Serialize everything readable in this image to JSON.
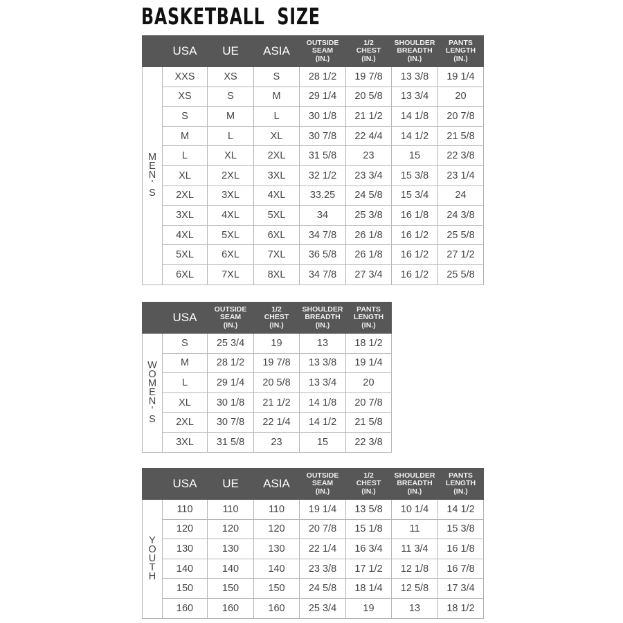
{
  "title": "BASKETBALL  SIZE",
  "tables": [
    {
      "id": "men",
      "side_label": "MEN'S",
      "headers": [
        {
          "label": "USA",
          "size": "big"
        },
        {
          "label": "UE",
          "size": "big"
        },
        {
          "label": "ASIA",
          "size": "big"
        },
        {
          "label": "OUTSIDE\nSEAM\n(IN.)",
          "size": "small"
        },
        {
          "label": "1/2\nCHEST\n(IN.)",
          "size": "small"
        },
        {
          "label": "SHOULDER\nBREADTH\n(IN.)",
          "size": "small"
        },
        {
          "label": "PANTS\nLENGTH\n(IN.)",
          "size": "small"
        }
      ],
      "rows": [
        [
          "XXS",
          "XS",
          "S",
          "28 1/2",
          "19 7/8",
          "13 3/8",
          "19 1/4"
        ],
        [
          "XS",
          "S",
          "M",
          "29 1/4",
          "20 5/8",
          "13 3/4",
          "20"
        ],
        [
          "S",
          "M",
          "L",
          "30 1/8",
          "21 1/2",
          "14 1/8",
          "20 7/8"
        ],
        [
          "M",
          "L",
          "XL",
          "30 7/8",
          "22 4/4",
          "14 1/2",
          "21 5/8"
        ],
        [
          "L",
          "XL",
          "2XL",
          "31 5/8",
          "23",
          "15",
          "22 3/8"
        ],
        [
          "XL",
          "2XL",
          "3XL",
          "32 1/2",
          "23 3/4",
          "15 3/8",
          "23 1/4"
        ],
        [
          "2XL",
          "3XL",
          "4XL",
          "33.25",
          "24 5/8",
          "15 3/4",
          "24"
        ],
        [
          "3XL",
          "4XL",
          "5XL",
          "34",
          "25 3/8",
          "16 1/8",
          "24 3/8"
        ],
        [
          "4XL",
          "5XL",
          "6XL",
          "34 7/8",
          "26 1/8",
          "16 1/2",
          "25 5/8"
        ],
        [
          "5XL",
          "6XL",
          "7XL",
          "36 5/8",
          "26 1/8",
          "16 1/2",
          "27 1/2"
        ],
        [
          "6XL",
          "7XL",
          "8XL",
          "34 7/8",
          "27 3/4",
          "16 1/2",
          "25 5/8"
        ]
      ]
    },
    {
      "id": "women",
      "side_label": "WOMEN'S",
      "headers": [
        {
          "label": "USA",
          "size": "big"
        },
        {
          "label": "OUTSIDE\nSEAM\n(IN.)",
          "size": "small"
        },
        {
          "label": "1/2\nCHEST\n(IN.)",
          "size": "small"
        },
        {
          "label": "SHOULDER\nBREADTH\n(IN.)",
          "size": "small"
        },
        {
          "label": "PANTS\nLENGTH\n(IN.)",
          "size": "small"
        }
      ],
      "rows": [
        [
          "S",
          "25 3/4",
          "19",
          "13",
          "18 1/2"
        ],
        [
          "M",
          "28 1/2",
          "19 7/8",
          "13 3/8",
          "19 1/4"
        ],
        [
          "L",
          "29 1/4",
          "20 5/8",
          "13 3/4",
          "20"
        ],
        [
          "XL",
          "30 1/8",
          "21 1/2",
          "14 1/8",
          "20 7/8"
        ],
        [
          "2XL",
          "30 7/8",
          "22 1/4",
          "14 1/2",
          "21 5/8"
        ],
        [
          "3XL",
          "31 5/8",
          "23",
          "15",
          "22 3/8"
        ]
      ]
    },
    {
      "id": "youth",
      "side_label": "YOUTH",
      "headers": [
        {
          "label": "USA",
          "size": "big"
        },
        {
          "label": "UE",
          "size": "big"
        },
        {
          "label": "ASIA",
          "size": "big"
        },
        {
          "label": "OUTSIDE\nSEAM\n(IN.)",
          "size": "small"
        },
        {
          "label": "1/2\nCHEST\n(IN.)",
          "size": "small"
        },
        {
          "label": "SHOULDER\nBREADTH\n(IN.)",
          "size": "small"
        },
        {
          "label": "PANTS\nLENGTH\n(IN.)",
          "size": "small"
        }
      ],
      "rows": [
        [
          "110",
          "110",
          "110",
          "19 1/4",
          "13 5/8",
          "10 1/4",
          "14 1/2"
        ],
        [
          "120",
          "120",
          "120",
          "20 7/8",
          "15 1/8",
          "11",
          "15 3/8"
        ],
        [
          "130",
          "130",
          "130",
          "22 1/4",
          "16 3/4",
          "11 3/4",
          "16 1/8"
        ],
        [
          "140",
          "140",
          "140",
          "23 3/8",
          "17 1/2",
          "12 1/8",
          "16 7/8"
        ],
        [
          "150",
          "150",
          "150",
          "24 5/8",
          "18 1/4",
          "12 5/8",
          "17 3/4"
        ],
        [
          "160",
          "160",
          "160",
          "25 3/4",
          "19",
          "13",
          "18 1/2"
        ]
      ]
    }
  ]
}
